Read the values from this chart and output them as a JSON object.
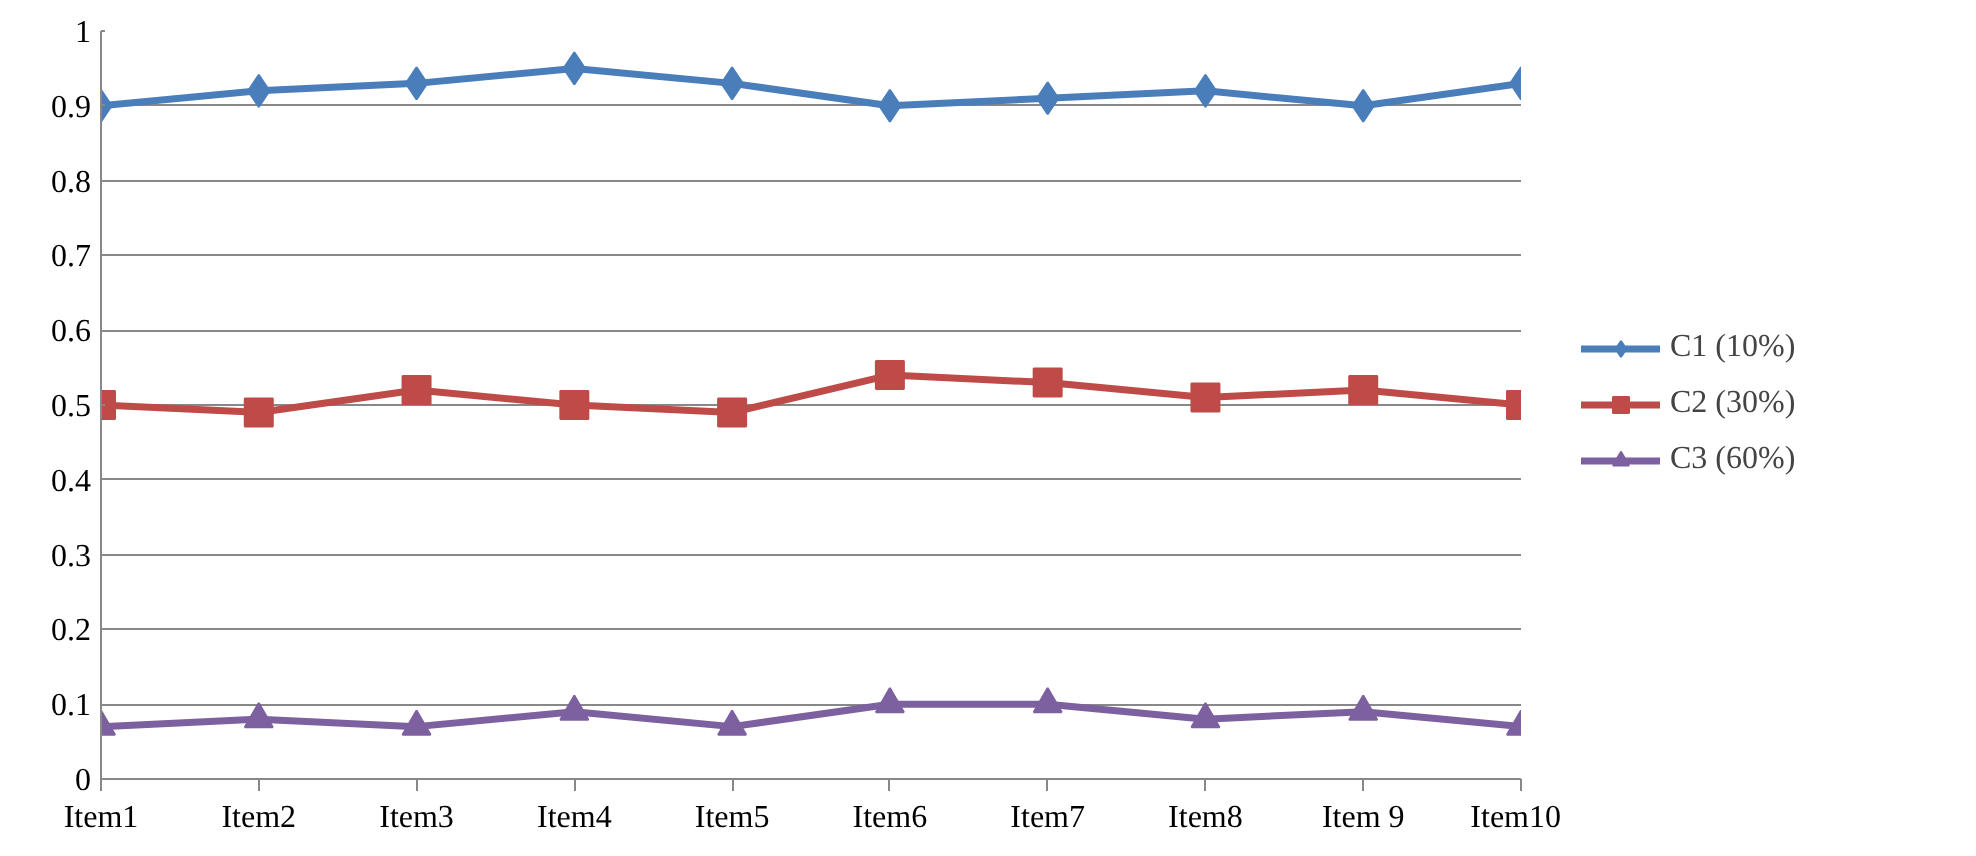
{
  "chart_data": {
    "type": "line",
    "categories": [
      "Item1",
      "Item2",
      "Item3",
      "Item4",
      "Item5",
      "Item6",
      "Item7",
      "Item8",
      "Item 9",
      "Item10"
    ],
    "series": [
      {
        "name": "C1 (10%)",
        "color": "#4a7ebb",
        "marker": "diamond",
        "values": [
          0.9,
          0.92,
          0.93,
          0.95,
          0.93,
          0.9,
          0.91,
          0.92,
          0.9,
          0.93
        ]
      },
      {
        "name": "C2 (30%)",
        "color": "#be4b48",
        "marker": "square",
        "values": [
          0.5,
          0.49,
          0.52,
          0.5,
          0.49,
          0.54,
          0.53,
          0.51,
          0.52,
          0.5
        ]
      },
      {
        "name": "C3 (60%)",
        "color": "#7d60a0",
        "marker": "triangle",
        "values": [
          0.07,
          0.08,
          0.07,
          0.09,
          0.07,
          0.1,
          0.1,
          0.08,
          0.09,
          0.07
        ]
      }
    ],
    "ylim": [
      0,
      1
    ],
    "yticks": [
      0,
      0.1,
      0.2,
      0.3,
      0.4,
      0.5,
      0.6,
      0.7,
      0.8,
      0.9,
      1
    ],
    "grid": "y",
    "legend": "right",
    "line_style": "solid"
  }
}
